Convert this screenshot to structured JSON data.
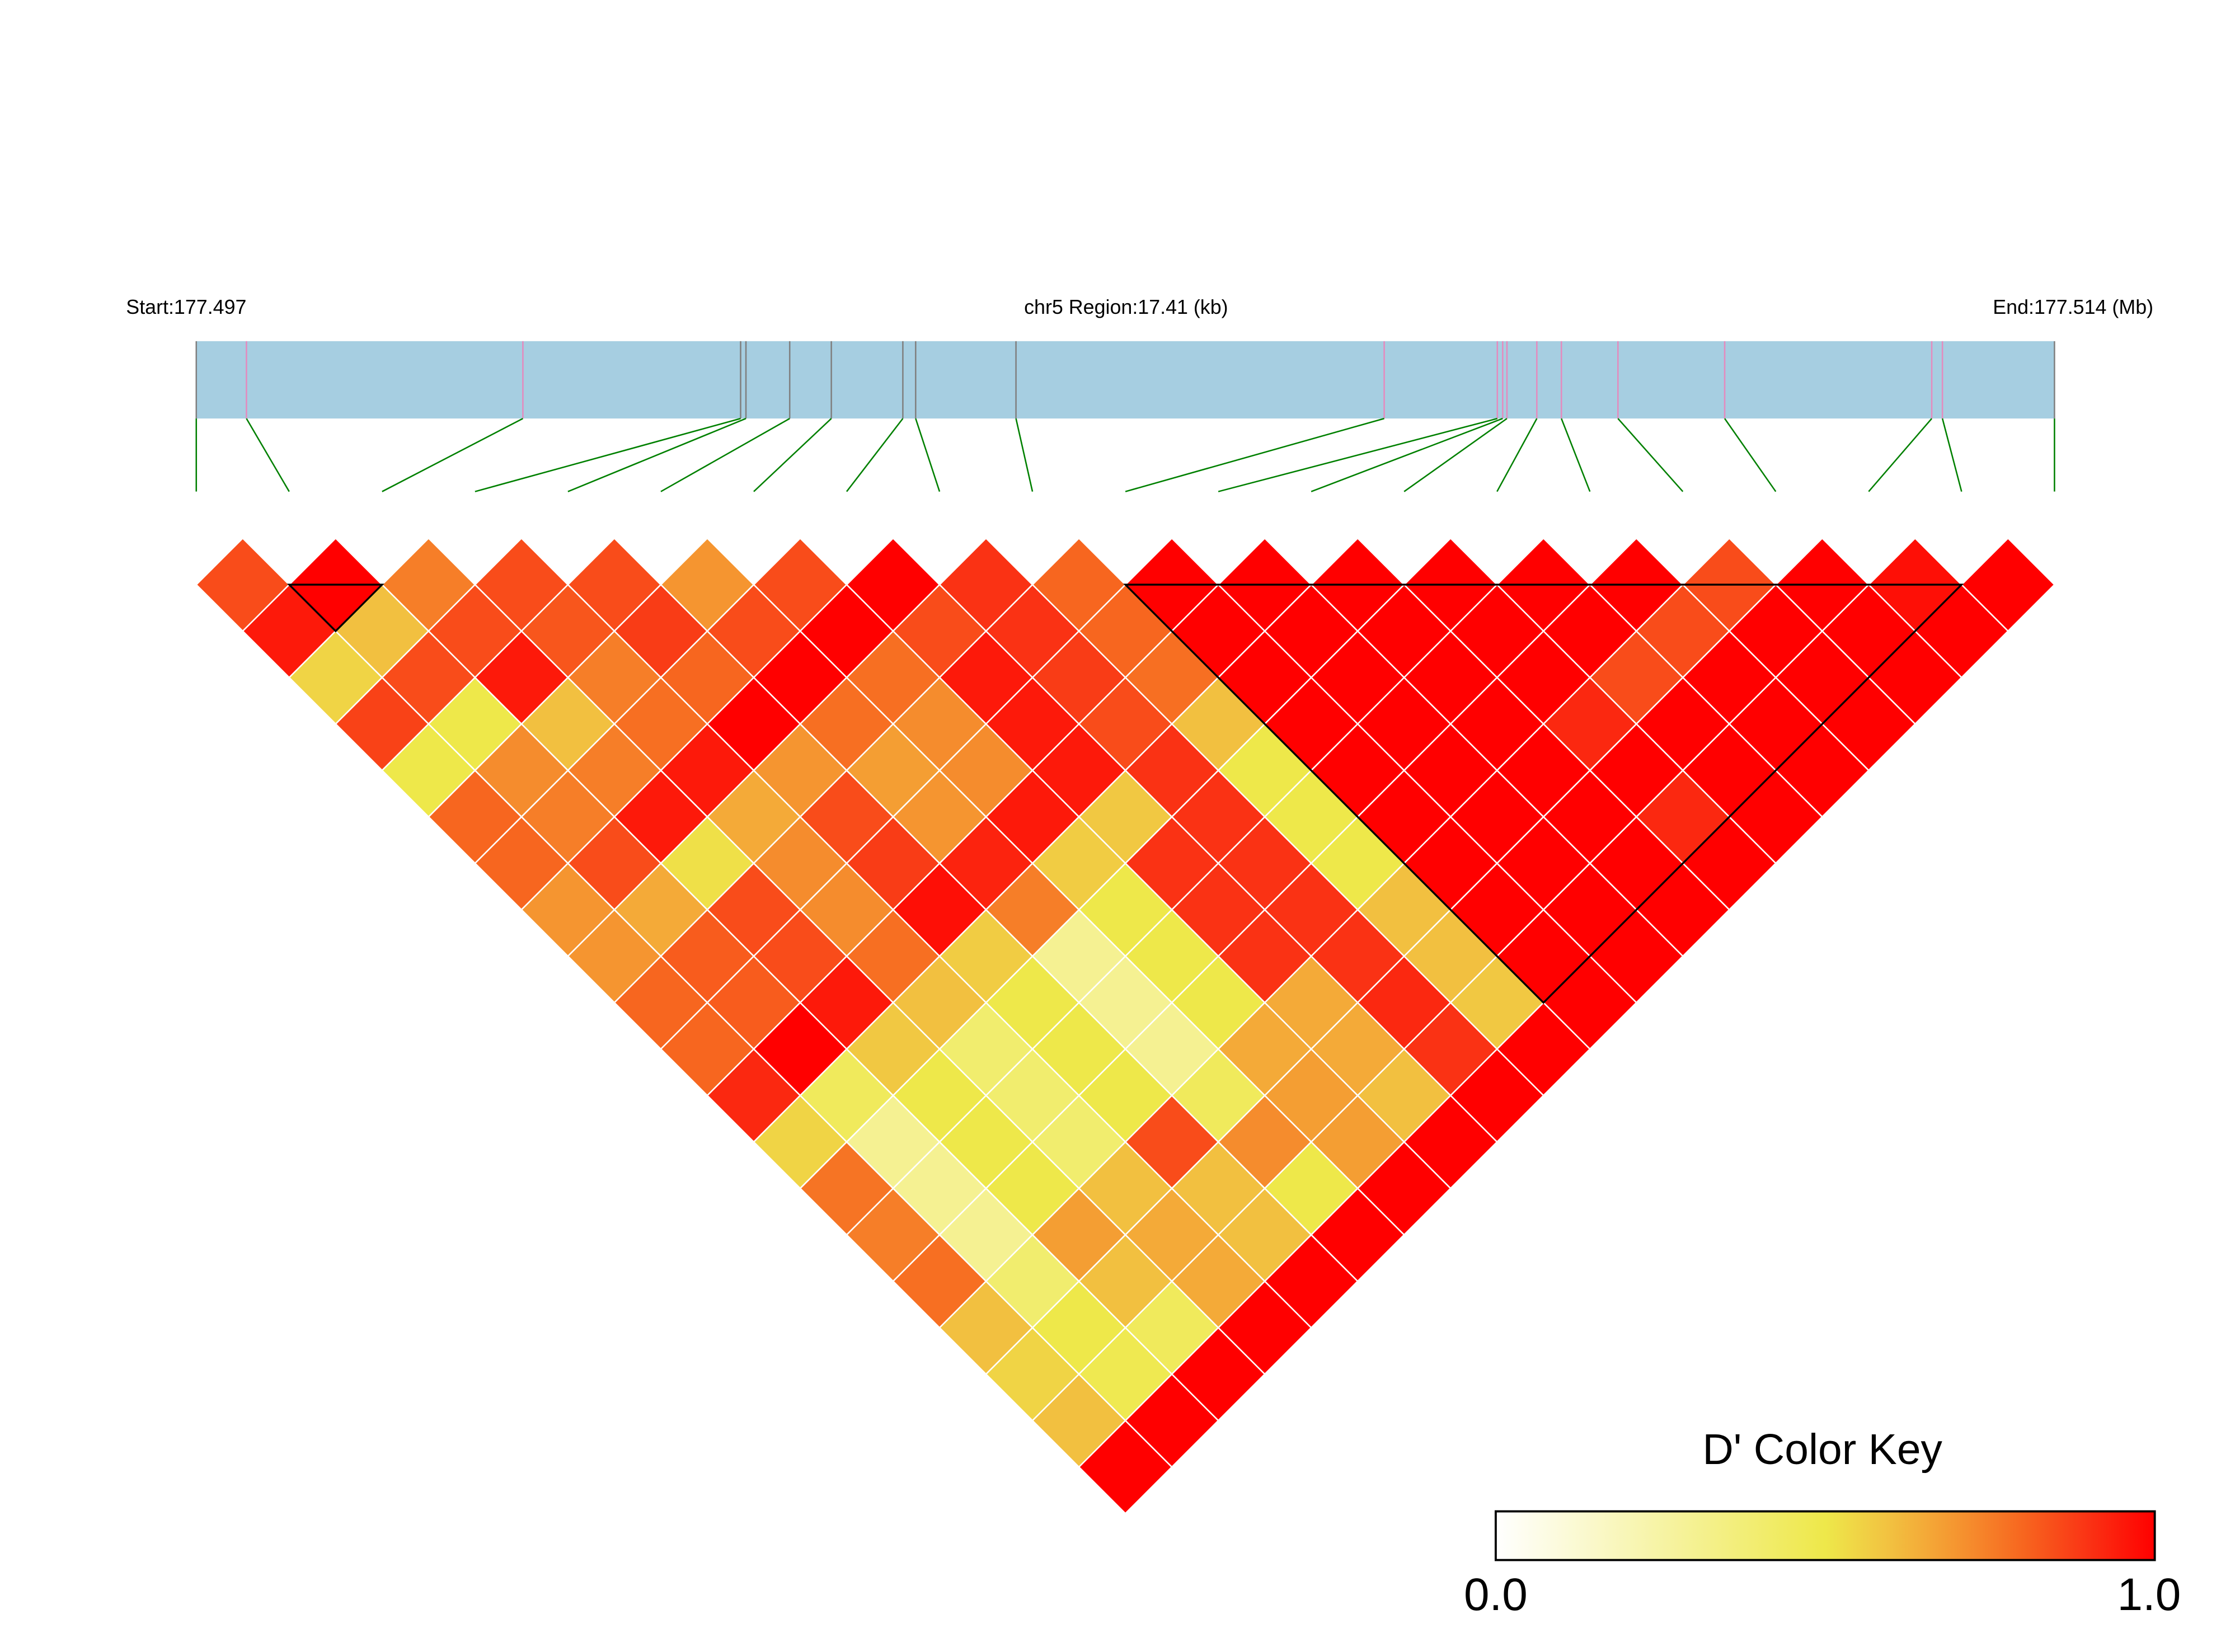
{
  "header": {
    "start_label": "Start:177.497",
    "region_label": "chr5 Region:17.41 (kb)",
    "end_label": "End:177.514 (Mb)"
  },
  "colors": {
    "region_bar": "#A6CEE1",
    "connector": "#008000",
    "snp_tick_grey": "#808080",
    "snp_tick_pink": "#E48BBE",
    "cell_border": "#FFFFFF",
    "block_outline": "#000000"
  },
  "chart_data": {
    "type": "heatmap",
    "region_kb": 17.41,
    "snp_positions_kb": [
      0,
      0.47,
      3.06,
      5.1,
      5.15,
      5.56,
      5.95,
      6.62,
      6.74,
      7.68,
      11.13,
      12.19,
      12.24,
      12.28,
      12.56,
      12.79,
      13.32,
      14.32,
      16.26,
      16.36,
      17.41
    ],
    "snp_tick_type": [
      "grey",
      "pink",
      "pink",
      "grey",
      "grey",
      "grey",
      "grey",
      "grey",
      "grey",
      "grey",
      "pink",
      "pink",
      "pink",
      "pink",
      "pink",
      "pink",
      "pink",
      "pink",
      "pink",
      "pink",
      "grey"
    ],
    "dprime_by_offset": [
      [
        0.85,
        1,
        0.75,
        0.85,
        0.85,
        0.7,
        0.85,
        1,
        0.9,
        0.8,
        1,
        1,
        1,
        1,
        1,
        1,
        0.85,
        1,
        0.97,
        1
      ],
      [
        0.95,
        0.6,
        0.85,
        0.83,
        0.88,
        0.85,
        1,
        0.85,
        0.9,
        0.8,
        1,
        1,
        1,
        1,
        1,
        0.85,
        1,
        1,
        1
      ],
      [
        0.55,
        0.85,
        0.95,
        0.75,
        0.8,
        1,
        0.78,
        0.95,
        0.88,
        0.78,
        1,
        1,
        1,
        1,
        0.85,
        1,
        1,
        1
      ],
      [
        0.87,
        0.5,
        0.6,
        0.78,
        1,
        0.78,
        0.72,
        0.95,
        0.85,
        0.6,
        1,
        1,
        1,
        0.92,
        1,
        1,
        1
      ],
      [
        0.5,
        0.72,
        0.75,
        0.95,
        0.7,
        0.68,
        0.72,
        0.95,
        0.9,
        0.5,
        1,
        1,
        1,
        1,
        1,
        1
      ],
      [
        0.8,
        0.75,
        0.95,
        0.65,
        0.85,
        0.7,
        0.95,
        0.58,
        0.9,
        0.5,
        1,
        1,
        1,
        0.92,
        1
      ],
      [
        0.8,
        0.85,
        0.52,
        0.72,
        0.88,
        0.93,
        0.57,
        0.9,
        0.9,
        0.5,
        1,
        1,
        1,
        1
      ],
      [
        0.7,
        0.65,
        0.85,
        0.72,
        0.97,
        0.75,
        0.5,
        0.9,
        0.9,
        0.6,
        1,
        1,
        1
      ],
      [
        0.7,
        0.82,
        0.85,
        0.78,
        0.57,
        0.3,
        0.5,
        0.9,
        0.9,
        0.6,
        1,
        1
      ],
      [
        0.8,
        0.82,
        0.95,
        0.6,
        0.5,
        0.3,
        0.5,
        0.65,
        0.92,
        0.58,
        1
      ],
      [
        0.8,
        1,
        0.58,
        0.4,
        0.5,
        0.3,
        0.65,
        0.65,
        0.9,
        1
      ],
      [
        0.92,
        0.45,
        0.5,
        0.4,
        0.5,
        0.45,
        0.68,
        0.6,
        1
      ],
      [
        0.55,
        0.3,
        0.5,
        0.4,
        0.85,
        0.72,
        0.68,
        1
      ],
      [
        0.77,
        0.3,
        0.5,
        0.6,
        0.6,
        0.5,
        1
      ],
      [
        0.75,
        0.3,
        0.68,
        0.65,
        0.6,
        1
      ],
      [
        0.78,
        0.4,
        0.6,
        0.65,
        1
      ],
      [
        0.6,
        0.5,
        0.45,
        1
      ],
      [
        0.55,
        0.48,
        1
      ],
      [
        0.6,
        1
      ],
      [
        1
      ]
    ],
    "ld_blocks": [
      {
        "first_snp": 2,
        "last_snp": 3
      },
      {
        "first_snp": 11,
        "last_snp": 20
      }
    ]
  },
  "color_key": {
    "title": "D' Color Key",
    "min_label": "0.0",
    "max_label": "1.0",
    "stops": [
      {
        "value": 0.0,
        "color": "#FFFFFF"
      },
      {
        "value": 0.5,
        "color": "#EEE84A"
      },
      {
        "value": 0.6,
        "color": "#F2C040"
      },
      {
        "value": 0.7,
        "color": "#F59530"
      },
      {
        "value": 0.8,
        "color": "#F7661F"
      },
      {
        "value": 0.9,
        "color": "#FA3214"
      },
      {
        "value": 1.0,
        "color": "#FF0000"
      }
    ]
  }
}
